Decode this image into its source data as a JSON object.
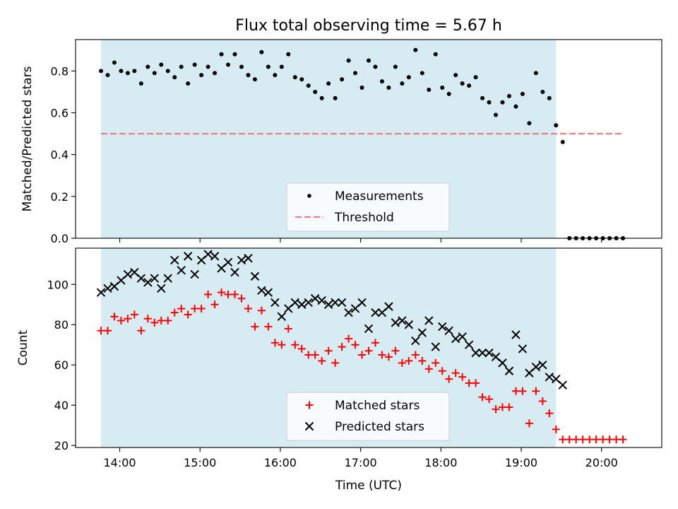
{
  "title": "Flux total observing time = 5.67 h",
  "chart_data": [
    {
      "type": "scatter",
      "ylabel": "Matched/Predicted stars",
      "xlabel": "",
      "xlim": [
        "13:27",
        "20:45"
      ],
      "ylim": [
        0,
        0.95
      ],
      "yticks": [
        0.0,
        0.2,
        0.4,
        0.6,
        0.8
      ],
      "ytick_labels": [
        "0.0",
        "0.2",
        "0.4",
        "0.6",
        "0.8"
      ],
      "observing_window": [
        "13:46",
        "19:26"
      ],
      "legend_position": "lower center",
      "series": [
        {
          "name": "Measurements",
          "marker": "dot",
          "color": "#000000",
          "x": [
            "13:46",
            "13:51",
            "13:56",
            "14:01",
            "14:06",
            "14:11",
            "14:16",
            "14:21",
            "14:26",
            "14:31",
            "14:36",
            "14:41",
            "14:46",
            "14:51",
            "14:56",
            "15:01",
            "15:06",
            "15:11",
            "15:16",
            "15:21",
            "15:26",
            "15:31",
            "15:36",
            "15:41",
            "15:46",
            "15:51",
            "15:56",
            "16:01",
            "16:06",
            "16:11",
            "16:16",
            "16:21",
            "16:26",
            "16:31",
            "16:36",
            "16:41",
            "16:46",
            "16:51",
            "16:56",
            "17:01",
            "17:06",
            "17:11",
            "17:16",
            "17:21",
            "17:26",
            "17:31",
            "17:36",
            "17:41",
            "17:46",
            "17:51",
            "17:56",
            "18:01",
            "18:06",
            "18:11",
            "18:16",
            "18:21",
            "18:26",
            "18:31",
            "18:36",
            "18:41",
            "18:46",
            "18:51",
            "18:56",
            "19:01",
            "19:06",
            "19:11",
            "19:16",
            "19:21",
            "19:26",
            "19:31",
            "19:36",
            "19:41",
            "19:46",
            "19:51",
            "19:56",
            "20:01",
            "20:06",
            "20:11",
            "20:16"
          ],
          "y": [
            0.8,
            0.78,
            0.84,
            0.8,
            0.79,
            0.8,
            0.74,
            0.82,
            0.79,
            0.83,
            0.8,
            0.77,
            0.82,
            0.74,
            0.83,
            0.78,
            0.82,
            0.79,
            0.88,
            0.83,
            0.88,
            0.82,
            0.78,
            0.76,
            0.89,
            0.82,
            0.78,
            0.82,
            0.88,
            0.77,
            0.76,
            0.73,
            0.7,
            0.67,
            0.74,
            0.67,
            0.76,
            0.85,
            0.79,
            0.72,
            0.85,
            0.82,
            0.75,
            0.72,
            0.82,
            0.74,
            0.77,
            0.9,
            0.79,
            0.71,
            0.88,
            0.72,
            0.69,
            0.78,
            0.74,
            0.73,
            0.77,
            0.67,
            0.65,
            0.59,
            0.65,
            0.68,
            0.63,
            0.69,
            0.55,
            0.79,
            0.7,
            0.67,
            0.54,
            0.46,
            0,
            0,
            0,
            0,
            0,
            0,
            0,
            0,
            0
          ]
        },
        {
          "name": "Threshold",
          "line": "dashed",
          "color": "#f08080",
          "x": [
            "13:46",
            "20:16"
          ],
          "y": [
            0.5,
            0.5
          ]
        }
      ]
    },
    {
      "type": "scatter",
      "ylabel": "Count",
      "xlabel": "Time (UTC)",
      "xlim": [
        "13:27",
        "20:45"
      ],
      "ylim": [
        19,
        118
      ],
      "yticks": [
        20,
        40,
        60,
        80,
        100
      ],
      "ytick_labels": [
        "20",
        "40",
        "60",
        "80",
        "100"
      ],
      "xticks": [
        "14:00",
        "15:00",
        "16:00",
        "17:00",
        "18:00",
        "19:00",
        "20:00"
      ],
      "xtick_labels": [
        "14:00",
        "15:00",
        "16:00",
        "17:00",
        "18:00",
        "19:00",
        "20:00"
      ],
      "observing_window": [
        "13:46",
        "19:26"
      ],
      "legend_position": "lower center",
      "series": [
        {
          "name": "Matched stars",
          "marker": "plus",
          "color": "#ff0000",
          "x": [
            "13:46",
            "13:51",
            "13:56",
            "14:01",
            "14:06",
            "14:11",
            "14:16",
            "14:21",
            "14:26",
            "14:31",
            "14:36",
            "14:41",
            "14:46",
            "14:51",
            "14:56",
            "15:01",
            "15:06",
            "15:11",
            "15:16",
            "15:21",
            "15:26",
            "15:31",
            "15:36",
            "15:41",
            "15:46",
            "15:51",
            "15:56",
            "16:01",
            "16:06",
            "16:11",
            "16:16",
            "16:21",
            "16:26",
            "16:31",
            "16:36",
            "16:41",
            "16:46",
            "16:51",
            "16:56",
            "17:01",
            "17:06",
            "17:11",
            "17:16",
            "17:21",
            "17:26",
            "17:31",
            "17:36",
            "17:41",
            "17:46",
            "17:51",
            "17:56",
            "18:01",
            "18:06",
            "18:11",
            "18:16",
            "18:21",
            "18:26",
            "18:31",
            "18:36",
            "18:41",
            "18:46",
            "18:51",
            "18:56",
            "19:01",
            "19:06",
            "19:11",
            "19:16",
            "19:21",
            "19:26",
            "19:31",
            "19:36",
            "19:41",
            "19:46",
            "19:51",
            "19:56",
            "20:01",
            "20:06",
            "20:11",
            "20:16"
          ],
          "y": [
            77,
            77,
            84,
            82,
            83,
            85,
            77,
            83,
            81,
            82,
            82,
            86,
            88,
            85,
            88,
            88,
            95,
            90,
            96,
            95,
            95,
            93,
            88,
            79,
            87,
            79,
            71,
            70,
            78,
            70,
            68,
            65,
            65,
            62,
            67,
            61,
            69,
            73,
            70,
            65,
            67,
            71,
            65,
            64,
            67,
            61,
            62,
            65,
            62,
            58,
            61,
            57,
            53,
            56,
            54,
            51,
            51,
            44,
            43,
            38,
            39,
            39,
            47,
            47,
            31,
            47,
            42,
            36,
            28,
            23,
            23,
            23,
            23,
            23,
            23,
            23,
            23,
            23,
            23
          ]
        },
        {
          "name": "Predicted stars",
          "marker": "x",
          "color": "#000000",
          "x": [
            "13:46",
            "13:51",
            "13:56",
            "14:01",
            "14:06",
            "14:11",
            "14:16",
            "14:21",
            "14:26",
            "14:31",
            "14:36",
            "14:41",
            "14:46",
            "14:51",
            "14:56",
            "15:01",
            "15:06",
            "15:11",
            "15:16",
            "15:21",
            "15:26",
            "15:31",
            "15:36",
            "15:41",
            "15:46",
            "15:51",
            "15:56",
            "16:01",
            "16:06",
            "16:11",
            "16:16",
            "16:21",
            "16:26",
            "16:31",
            "16:36",
            "16:41",
            "16:46",
            "16:51",
            "16:56",
            "17:01",
            "17:06",
            "17:11",
            "17:16",
            "17:21",
            "17:26",
            "17:31",
            "17:36",
            "17:41",
            "17:46",
            "17:51",
            "17:56",
            "18:01",
            "18:06",
            "18:11",
            "18:16",
            "18:21",
            "18:26",
            "18:31",
            "18:36",
            "18:41",
            "18:46",
            "18:51",
            "18:56",
            "19:01",
            "19:06",
            "19:11",
            "19:16",
            "19:21",
            "19:26",
            "19:31"
          ],
          "y": [
            96,
            98,
            99,
            102,
            105,
            106,
            103,
            101,
            103,
            98,
            103,
            112,
            107,
            114,
            105,
            112,
            115,
            114,
            108,
            111,
            106,
            112,
            113,
            104,
            97,
            96,
            91,
            84,
            88,
            91,
            90,
            91,
            93,
            92,
            90,
            91,
            91,
            86,
            88,
            91,
            78,
            86,
            86,
            89,
            81,
            82,
            80,
            72,
            76,
            82,
            69,
            79,
            77,
            73,
            74,
            70,
            66,
            66,
            66,
            64,
            61,
            57,
            75,
            68,
            56,
            59,
            60,
            54,
            53,
            50
          ]
        }
      ]
    }
  ]
}
